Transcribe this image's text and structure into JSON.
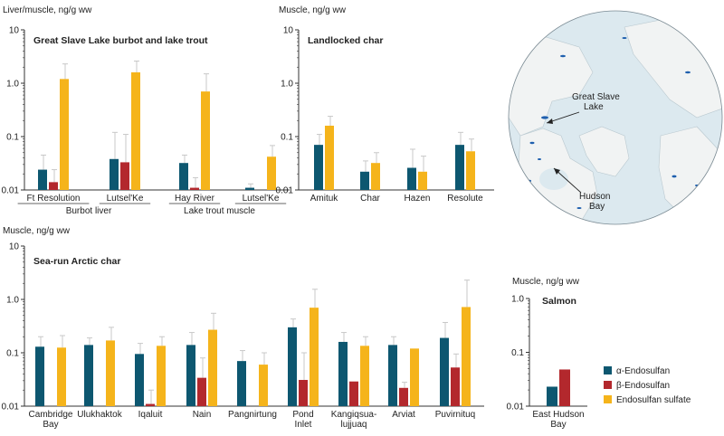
{
  "colors": {
    "alpha": "#0d5770",
    "beta": "#b3282d",
    "sulfate": "#f5b41b",
    "axis": "#333333",
    "errorbar": "#c8c8c8",
    "land": "#f1f3f3",
    "sea": "#dce9ef",
    "lake": "#1f5fae"
  },
  "legend": {
    "items": [
      {
        "label": "α-Endosulfan",
        "color": "#0d5770"
      },
      {
        "label": "β-Endosulfan",
        "color": "#b3282d"
      },
      {
        "label": "Endosulfan sulfate",
        "color": "#f5b41b"
      }
    ]
  },
  "map": {
    "labels": [
      "Great Slave",
      "Lake",
      "Hudson",
      "Bay"
    ]
  },
  "chart_data": [
    {
      "type": "bar",
      "ylabel": "Liver/muscle, ng/g ww",
      "title": "Great Slave Lake burbot and lake trout",
      "yscale": "log",
      "ylim": [
        0.01,
        10
      ],
      "yticks": [
        "10",
        "1.0",
        "0.1",
        "0.01"
      ],
      "categories": [
        "Ft Resolution",
        "Lutsel'Ke",
        "Hay River",
        "Lutsel'Ke"
      ],
      "groups": [
        {
          "label": "Burbot liver"
        },
        {
          "label": "Lake trout muscle"
        }
      ],
      "series": [
        {
          "name": "α-Endosulfan",
          "values": [
            0.024,
            0.038,
            0.032,
            0.011
          ],
          "errors": [
            0.045,
            0.12,
            0.045,
            0.013
          ]
        },
        {
          "name": "β-Endosulfan",
          "values": [
            0.014,
            0.033,
            0.011,
            null
          ],
          "errors": [
            0.024,
            0.11,
            0.017,
            null
          ]
        },
        {
          "name": "Endosulfan sulfate",
          "values": [
            1.2,
            1.6,
            0.7,
            0.042
          ],
          "errors": [
            2.3,
            2.6,
            1.5,
            0.068
          ]
        }
      ]
    },
    {
      "type": "bar",
      "ylabel": "Muscle, ng/g ww",
      "title": "Landlocked char",
      "yscale": "log",
      "ylim": [
        0.01,
        10
      ],
      "yticks": [
        "10",
        "1.0",
        "0.1",
        "0.01"
      ],
      "categories": [
        "Amituk",
        "Char",
        "Hazen",
        "Resolute"
      ],
      "series": [
        {
          "name": "α-Endosulfan",
          "values": [
            0.07,
            0.022,
            0.026,
            0.07
          ],
          "errors": [
            0.11,
            0.035,
            0.058,
            0.12
          ]
        },
        {
          "name": "Endosulfan sulfate",
          "values": [
            0.16,
            0.032,
            0.022,
            0.053
          ],
          "errors": [
            0.24,
            0.05,
            0.043,
            0.09
          ]
        }
      ]
    },
    {
      "type": "bar",
      "ylabel": "Muscle, ng/g ww",
      "title": "Sea-run Arctic char",
      "yscale": "log",
      "ylim": [
        0.01,
        10
      ],
      "yticks": [
        "10",
        "1.0",
        "0.1",
        "0.01"
      ],
      "categories": [
        "Cambridge Bay",
        "Ulukhaktok",
        "Iqaluit",
        "Nain",
        "Pangnirtung",
        "Pond Inlet",
        "Kangiqsua-lujjuaq",
        "Arviat",
        "Puvirnituq"
      ],
      "series": [
        {
          "name": "α-Endosulfan",
          "values": [
            0.13,
            0.14,
            0.095,
            0.14,
            0.07,
            0.3,
            0.16,
            0.14,
            0.19
          ],
          "errors": [
            0.2,
            0.19,
            0.15,
            0.24,
            0.11,
            0.43,
            0.24,
            0.2,
            0.37
          ]
        },
        {
          "name": "β-Endosulfan",
          "values": [
            null,
            null,
            0.011,
            0.034,
            null,
            0.031,
            0.029,
            0.022,
            0.053
          ],
          "errors": [
            null,
            null,
            0.02,
            0.08,
            null,
            0.1,
            null,
            0.028,
            0.095
          ]
        },
        {
          "name": "Endosulfan sulfate",
          "values": [
            0.125,
            0.17,
            0.135,
            0.27,
            0.06,
            0.7,
            0.135,
            0.12,
            0.72
          ],
          "errors": [
            0.21,
            0.3,
            0.2,
            0.55,
            0.1,
            1.55,
            0.2,
            null,
            2.3
          ]
        }
      ]
    },
    {
      "type": "bar",
      "ylabel": "Muscle, ng/g ww",
      "title": "Salmon",
      "yscale": "log",
      "ylim": [
        0.01,
        1.0
      ],
      "yticks": [
        "1.0",
        "0.1",
        "0.01"
      ],
      "categories": [
        "East Hudson Bay"
      ],
      "series": [
        {
          "name": "α-Endosulfan",
          "values": [
            0.023
          ],
          "errors": [
            null
          ]
        },
        {
          "name": "β-Endosulfan",
          "values": [
            0.048
          ],
          "errors": [
            null
          ]
        }
      ]
    }
  ]
}
